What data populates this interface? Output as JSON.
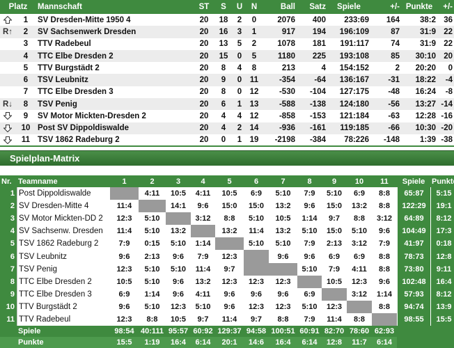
{
  "standings": {
    "headers": [
      "Platz",
      "Mannschaft",
      "ST",
      "S",
      "U",
      "N",
      "Ball",
      "Satz",
      "Spiele",
      "+/-",
      "Punkte",
      "+/-"
    ],
    "rows": [
      {
        "mark": "up-arrow-icon",
        "platz": "1",
        "team": "SV Dresden-Mitte 1950 4",
        "st": "20",
        "s": "18",
        "u": "2",
        "n": "0",
        "ball": "2076",
        "satz": "400",
        "spiele": "233:69",
        "diff": "164",
        "punkte": "38:2",
        "pdiff": "36"
      },
      {
        "mark": "R↑",
        "platz": "2",
        "team": "SV Sachsenwerk Dresden",
        "st": "20",
        "s": "16",
        "u": "3",
        "n": "1",
        "ball": "917",
        "satz": "194",
        "spiele": "196:109",
        "diff": "87",
        "punkte": "31:9",
        "pdiff": "22"
      },
      {
        "mark": "",
        "platz": "3",
        "team": "TTV Radebeul",
        "st": "20",
        "s": "13",
        "u": "5",
        "n": "2",
        "ball": "1078",
        "satz": "181",
        "spiele": "191:117",
        "diff": "74",
        "punkte": "31:9",
        "pdiff": "22"
      },
      {
        "mark": "",
        "platz": "4",
        "team": "TTC Elbe Dresden 2",
        "st": "20",
        "s": "15",
        "u": "0",
        "n": "5",
        "ball": "1180",
        "satz": "225",
        "spiele": "193:108",
        "diff": "85",
        "punkte": "30:10",
        "pdiff": "20"
      },
      {
        "mark": "",
        "platz": "5",
        "team": "TTV Burgstädt 2",
        "st": "20",
        "s": "8",
        "u": "4",
        "n": "8",
        "ball": "213",
        "satz": "4",
        "spiele": "154:152",
        "diff": "2",
        "punkte": "20:20",
        "pdiff": "0"
      },
      {
        "mark": "",
        "platz": "6",
        "team": "TSV Leubnitz",
        "st": "20",
        "s": "9",
        "u": "0",
        "n": "11",
        "ball": "-354",
        "satz": "-64",
        "spiele": "136:167",
        "diff": "-31",
        "punkte": "18:22",
        "pdiff": "-4"
      },
      {
        "mark": "",
        "platz": "7",
        "team": "TTC Elbe Dresden 3",
        "st": "20",
        "s": "8",
        "u": "0",
        "n": "12",
        "ball": "-530",
        "satz": "-104",
        "spiele": "127:175",
        "diff": "-48",
        "punkte": "16:24",
        "pdiff": "-8"
      },
      {
        "mark": "R↓",
        "platz": "8",
        "team": "TSV Penig",
        "st": "20",
        "s": "6",
        "u": "1",
        "n": "13",
        "ball": "-588",
        "satz": "-138",
        "spiele": "124:180",
        "diff": "-56",
        "punkte": "13:27",
        "pdiff": "-14"
      },
      {
        "mark": "down-arrow-icon",
        "platz": "9",
        "team": "SV Motor Mickten-Dresden 2",
        "st": "20",
        "s": "4",
        "u": "4",
        "n": "12",
        "ball": "-858",
        "satz": "-153",
        "spiele": "121:184",
        "diff": "-63",
        "punkte": "12:28",
        "pdiff": "-16"
      },
      {
        "mark": "down-arrow-icon",
        "platz": "10",
        "team": "Post SV Dippoldiswalde",
        "st": "20",
        "s": "4",
        "u": "2",
        "n": "14",
        "ball": "-936",
        "satz": "-161",
        "spiele": "119:185",
        "diff": "-66",
        "punkte": "10:30",
        "pdiff": "-20"
      },
      {
        "mark": "down-arrow-icon",
        "platz": "11",
        "team": "TSV 1862 Radeburg 2",
        "st": "20",
        "s": "0",
        "u": "1",
        "n": "19",
        "ball": "-2198",
        "satz": "-384",
        "spiele": "78:226",
        "diff": "-148",
        "punkte": "1:39",
        "pdiff": "-38"
      }
    ]
  },
  "matrix": {
    "title": "Spielplan-Matrix",
    "headers": [
      "Nr.",
      "Teamname",
      "1",
      "2",
      "3",
      "4",
      "5",
      "6",
      "7",
      "8",
      "9",
      "10",
      "11",
      "Spiele",
      "Punkte"
    ],
    "rows": [
      {
        "nr": "1",
        "team": "Post Dippoldiswalde",
        "cells": [
          "",
          "4:11",
          "10:5",
          "4:11",
          "10:5",
          "6:9",
          "5:10",
          "7:9",
          "5:10",
          "6:9",
          "8:8"
        ],
        "spiele": "65:87",
        "punkte": "5:15"
      },
      {
        "nr": "2",
        "team": "SV Dresden-Mitte 4",
        "cells": [
          "11:4",
          "",
          "14:1",
          "9:6",
          "15:0",
          "15:0",
          "13:2",
          "9:6",
          "15:0",
          "13:2",
          "8:8"
        ],
        "spiele": "122:29",
        "punkte": "19:1"
      },
      {
        "nr": "3",
        "team": "SV Motor Mickten-DD 2",
        "cells": [
          "12:3",
          "5:10",
          "",
          "3:12",
          "8:8",
          "5:10",
          "10:5",
          "1:14",
          "9:7",
          "8:8",
          "3:12"
        ],
        "spiele": "64:89",
        "punkte": "8:12"
      },
      {
        "nr": "4",
        "team": "SV Sachsenw. Dresden",
        "cells": [
          "11:4",
          "5:10",
          "13:2",
          "",
          "13:2",
          "11:4",
          "13:2",
          "5:10",
          "15:0",
          "5:10",
          "9:6"
        ],
        "spiele": "104:49",
        "punkte": "17:3"
      },
      {
        "nr": "5",
        "team": "TSV 1862 Radeburg 2",
        "cells": [
          "7:9",
          "0:15",
          "5:10",
          "1:14",
          "",
          "5:10",
          "5:10",
          "7:9",
          "2:13",
          "3:12",
          "7:9"
        ],
        "spiele": "41:97",
        "punkte": "0:18"
      },
      {
        "nr": "6",
        "team": "TSV Leubnitz",
        "cells": [
          "9:6",
          "2:13",
          "9:6",
          "7:9",
          "12:3",
          "",
          "9:6",
          "9:6",
          "6:9",
          "6:9",
          "8:8"
        ],
        "spiele": "78:73",
        "punkte": "12:8"
      },
      {
        "nr": "7",
        "team": "TSV Penig",
        "cells": [
          "12:3",
          "5:10",
          "5:10",
          "11:4",
          "9:7",
          "",
          "",
          "5:10",
          "7:9",
          "4:11",
          "8:8"
        ],
        "spiele": "73:80",
        "punkte": "9:11"
      },
      {
        "nr": "8",
        "team": "TTC Elbe Dresden 2",
        "cells": [
          "10:5",
          "5:10",
          "9:6",
          "13:2",
          "12:3",
          "12:3",
          "12:3",
          "",
          "10:5",
          "12:3",
          "9:6"
        ],
        "spiele": "102:48",
        "punkte": "16:4"
      },
      {
        "nr": "9",
        "team": "TTC Elbe Dresden 3",
        "cells": [
          "6:9",
          "1:14",
          "9:6",
          "4:11",
          "9:6",
          "9:6",
          "9:6",
          "6:9",
          "",
          "3:12",
          "1:14"
        ],
        "spiele": "57:93",
        "punkte": "8:12"
      },
      {
        "nr": "10",
        "team": "TTV Burgstädt 2",
        "cells": [
          "9:6",
          "5:10",
          "12:3",
          "5:10",
          "9:6",
          "12:3",
          "12:3",
          "5:10",
          "12:3",
          "",
          "8:8"
        ],
        "spiele": "94:74",
        "punkte": "13:9"
      },
      {
        "nr": "11",
        "team": "TTV Radebeul",
        "cells": [
          "12:3",
          "8:8",
          "10:5",
          "9:7",
          "11:4",
          "9:7",
          "8:8",
          "7:9",
          "11:4",
          "8:8",
          ""
        ],
        "spiele": "98:55",
        "punkte": "15:5"
      }
    ],
    "footer": {
      "spiele_label": "Spiele",
      "punkte_label": "Punkte",
      "spiele": [
        "98:54",
        "40:111",
        "95:57",
        "60:92",
        "129:37",
        "94:58",
        "100:51",
        "60:91",
        "82:70",
        "78:60",
        "62:93"
      ],
      "punkte": [
        "15:5",
        "1:19",
        "16:4",
        "6:14",
        "20:1",
        "14:6",
        "16:4",
        "6:14",
        "12:8",
        "11:7",
        "6:14"
      ]
    }
  },
  "colors": {
    "accent": "#3f8a3f",
    "diagonal": "#9a9a9a"
  }
}
